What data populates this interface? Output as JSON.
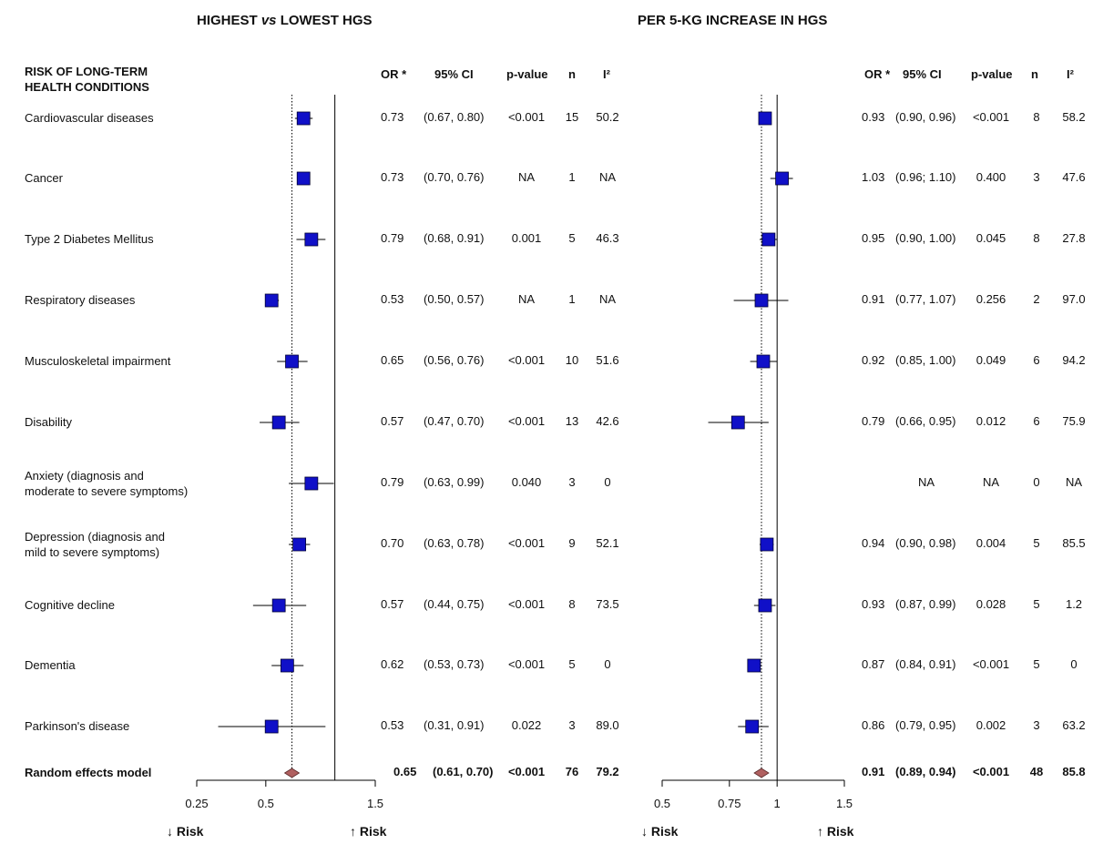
{
  "titles": {
    "left_prefix": "HIGHEST ",
    "left_vs": "vs",
    "left_suffix": " LOWEST HGS",
    "right": "PER 5-KG INCREASE IN HGS"
  },
  "row_header": "RISK OF LONG-TERM\nHEALTH CONDITIONS",
  "column_headers": {
    "or": "OR *",
    "ci": "95% CI",
    "p": "p-value",
    "n": "n",
    "i2": "I²"
  },
  "colors": {
    "square": "#1010c8",
    "diamond": "#b06060",
    "line": "#000000"
  },
  "chart_data": [
    {
      "type": "forest",
      "panel": "left",
      "axis_ticks": [
        0.25,
        0.5,
        1.5
      ],
      "axis_tick_labels": [
        "0.25",
        "0.5",
        "1.5"
      ],
      "xlim": [
        0.25,
        1.5
      ],
      "reference_line": 1,
      "summary_line": 0.65,
      "arrow_low": "Risk",
      "arrow_high": "Risk",
      "rows": [
        {
          "label": "Cardiovascular diseases",
          "or": 0.73,
          "lo": 0.67,
          "hi": 0.8,
          "or_text": "0.73",
          "ci_text": "(0.67, 0.80)",
          "p": "<0.001",
          "n": "15",
          "i2": "50.2"
        },
        {
          "label": "Cancer",
          "or": 0.73,
          "lo": 0.7,
          "hi": 0.76,
          "or_text": "0.73",
          "ci_text": "(0.70, 0.76)",
          "p": "NA",
          "n": "1",
          "i2": "NA"
        },
        {
          "label": "Type 2 Diabetes Mellitus",
          "or": 0.79,
          "lo": 0.68,
          "hi": 0.91,
          "or_text": "0.79",
          "ci_text": "(0.68, 0.91)",
          "p": "0.001",
          "n": "5",
          "i2": "46.3"
        },
        {
          "label": "Respiratory diseases",
          "or": 0.53,
          "lo": 0.5,
          "hi": 0.57,
          "or_text": "0.53",
          "ci_text": "(0.50, 0.57)",
          "p": "NA",
          "n": "1",
          "i2": "NA"
        },
        {
          "label": "Musculoskeletal impairment",
          "or": 0.65,
          "lo": 0.56,
          "hi": 0.76,
          "or_text": "0.65",
          "ci_text": "(0.56, 0.76)",
          "p": "<0.001",
          "n": "10",
          "i2": "51.6"
        },
        {
          "label": "Disability",
          "or": 0.57,
          "lo": 0.47,
          "hi": 0.7,
          "or_text": "0.57",
          "ci_text": "(0.47, 0.70)",
          "p": "<0.001",
          "n": "13",
          "i2": "42.6"
        },
        {
          "label": "Anxiety (diagnosis and\nmoderate to severe symptoms)",
          "or": 0.79,
          "lo": 0.63,
          "hi": 0.99,
          "or_text": "0.79",
          "ci_text": "(0.63, 0.99)",
          "p": "0.040",
          "n": "3",
          "i2": "0"
        },
        {
          "label": "Depression (diagnosis and\nmild to severe symptoms)",
          "or": 0.7,
          "lo": 0.63,
          "hi": 0.78,
          "or_text": "0.70",
          "ci_text": "(0.63, 0.78)",
          "p": "<0.001",
          "n": "9",
          "i2": "52.1"
        },
        {
          "label": "Cognitive decline",
          "or": 0.57,
          "lo": 0.44,
          "hi": 0.75,
          "or_text": "0.57",
          "ci_text": "(0.44, 0.75)",
          "p": "<0.001",
          "n": "8",
          "i2": "73.5"
        },
        {
          "label": "Dementia",
          "or": 0.62,
          "lo": 0.53,
          "hi": 0.73,
          "or_text": "0.62",
          "ci_text": "(0.53, 0.73)",
          "p": "<0.001",
          "n": "5",
          "i2": "0"
        },
        {
          "label": "Parkinson's disease",
          "or": 0.53,
          "lo": 0.31,
          "hi": 0.91,
          "or_text": "0.53",
          "ci_text": "(0.31, 0.91)",
          "p": "0.022",
          "n": "3",
          "i2": "89.0"
        }
      ],
      "summary": {
        "label": "Random effects model",
        "or": 0.65,
        "lo": 0.61,
        "hi": 0.7,
        "or_text": "0.65",
        "ci_text": "(0.61, 0.70)",
        "p": "<0.001",
        "n": "76",
        "i2": "79.2"
      }
    },
    {
      "type": "forest",
      "panel": "right",
      "axis_ticks": [
        0.5,
        0.75,
        1,
        1.5
      ],
      "axis_tick_labels": [
        "0.5",
        "0.75",
        "1",
        "1.5"
      ],
      "xlim": [
        0.5,
        1.5
      ],
      "reference_line": 1,
      "summary_line": 0.91,
      "arrow_low": "Risk",
      "arrow_high": "Risk",
      "rows": [
        {
          "or": 0.93,
          "lo": 0.9,
          "hi": 0.96,
          "or_text": "0.93",
          "ci_text": "(0.90, 0.96)",
          "p": "<0.001",
          "n": "8",
          "i2": "58.2"
        },
        {
          "or": 1.03,
          "lo": 0.96,
          "hi": 1.1,
          "or_text": "1.03",
          "ci_text": "(0.96; 1.10)",
          "p": "0.400",
          "n": "3",
          "i2": "47.6"
        },
        {
          "or": 0.95,
          "lo": 0.9,
          "hi": 1.0,
          "or_text": "0.95",
          "ci_text": "(0.90, 1.00)",
          "p": "0.045",
          "n": "8",
          "i2": "27.8"
        },
        {
          "or": 0.91,
          "lo": 0.77,
          "hi": 1.07,
          "or_text": "0.91",
          "ci_text": "(0.77, 1.07)",
          "p": "0.256",
          "n": "2",
          "i2": "97.0"
        },
        {
          "or": 0.92,
          "lo": 0.85,
          "hi": 1.0,
          "or_text": "0.92",
          "ci_text": "(0.85, 1.00)",
          "p": "0.049",
          "n": "6",
          "i2": "94.2"
        },
        {
          "or": 0.79,
          "lo": 0.66,
          "hi": 0.95,
          "or_text": "0.79",
          "ci_text": "(0.66, 0.95)",
          "p": "0.012",
          "n": "6",
          "i2": "75.9"
        },
        {
          "or": null,
          "lo": null,
          "hi": null,
          "or_text": "NA",
          "ci_text": "",
          "p": "NA",
          "n": "0",
          "i2": "NA"
        },
        {
          "or": 0.94,
          "lo": 0.9,
          "hi": 0.98,
          "or_text": "0.94",
          "ci_text": "(0.90, 0.98)",
          "p": "0.004",
          "n": "5",
          "i2": "85.5"
        },
        {
          "or": 0.93,
          "lo": 0.87,
          "hi": 0.99,
          "or_text": "0.93",
          "ci_text": "(0.87, 0.99)",
          "p": "0.028",
          "n": "5",
          "i2": "1.2"
        },
        {
          "or": 0.87,
          "lo": 0.84,
          "hi": 0.91,
          "or_text": "0.87",
          "ci_text": "(0.84, 0.91)",
          "p": "<0.001",
          "n": "5",
          "i2": "0"
        },
        {
          "or": 0.86,
          "lo": 0.79,
          "hi": 0.95,
          "or_text": "0.86",
          "ci_text": "(0.79, 0.95)",
          "p": "0.002",
          "n": "3",
          "i2": "63.2"
        }
      ],
      "summary": {
        "or": 0.91,
        "lo": 0.89,
        "hi": 0.94,
        "or_text": "0.91",
        "ci_text": "(0.89, 0.94)",
        "p": "<0.001",
        "n": "48",
        "i2": "85.8"
      }
    }
  ]
}
